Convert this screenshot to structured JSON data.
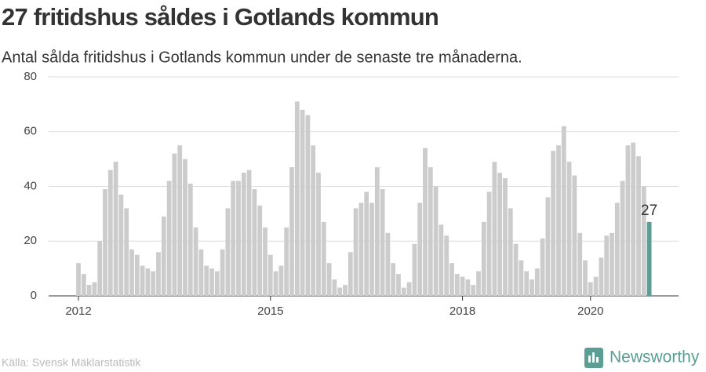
{
  "chart_data": {
    "type": "bar",
    "title": "27 fritidshus såldes i Gotlands kommun",
    "subtitle": "Antal sålda fritidshus i Gotlands kommun under de senaste tre månaderna.",
    "source": "Källa: Svensk Mäklarstatistik",
    "brand": "Newsworthy",
    "categories": [
      "2012",
      null,
      null,
      null,
      null,
      null,
      null,
      null,
      null,
      null,
      null,
      null,
      null,
      null,
      null,
      null,
      null,
      null,
      null,
      null,
      null,
      null,
      null,
      null,
      null,
      null,
      null,
      null,
      null,
      null,
      null,
      null,
      null,
      null,
      null,
      null,
      "2015",
      null,
      null,
      null,
      null,
      null,
      null,
      null,
      null,
      null,
      null,
      null,
      null,
      null,
      null,
      null,
      null,
      null,
      null,
      null,
      null,
      null,
      null,
      null,
      null,
      null,
      null,
      null,
      null,
      null,
      null,
      null,
      null,
      null,
      null,
      null,
      "2018",
      null,
      null,
      null,
      null,
      null,
      null,
      null,
      null,
      null,
      null,
      null,
      null,
      null,
      null,
      null,
      null,
      null,
      null,
      null,
      null,
      null,
      null,
      null,
      "2020",
      null,
      null,
      null,
      null,
      null,
      null,
      null,
      null,
      null,
      null,
      null
    ],
    "values": [
      12,
      8,
      4,
      5,
      20,
      39,
      46,
      49,
      37,
      32,
      17,
      15,
      11,
      10,
      9,
      16,
      29,
      42,
      52,
      55,
      50,
      41,
      25,
      17,
      11,
      10,
      9,
      17,
      32,
      42,
      42,
      45,
      46,
      39,
      33,
      25,
      15,
      9,
      11,
      25,
      47,
      71,
      68,
      66,
      55,
      45,
      27,
      12,
      6,
      3,
      4,
      16,
      32,
      34,
      38,
      34,
      47,
      39,
      23,
      12,
      8,
      3,
      5,
      19,
      34,
      54,
      47,
      40,
      26,
      22,
      12,
      8,
      7,
      6,
      4,
      9,
      27,
      38,
      49,
      45,
      43,
      32,
      19,
      13,
      9,
      6,
      10,
      21,
      36,
      53,
      55,
      62,
      49,
      44,
      23,
      13,
      5,
      7,
      14,
      22,
      23,
      34,
      42,
      55,
      56,
      51,
      40,
      27
    ],
    "color": "#cccccc",
    "highlight": {
      "index": 107,
      "color": "#5a9e94"
    },
    "ylim": [
      0,
      80
    ],
    "yticks": [
      0,
      20,
      40,
      60,
      80
    ],
    "grid": true
  }
}
